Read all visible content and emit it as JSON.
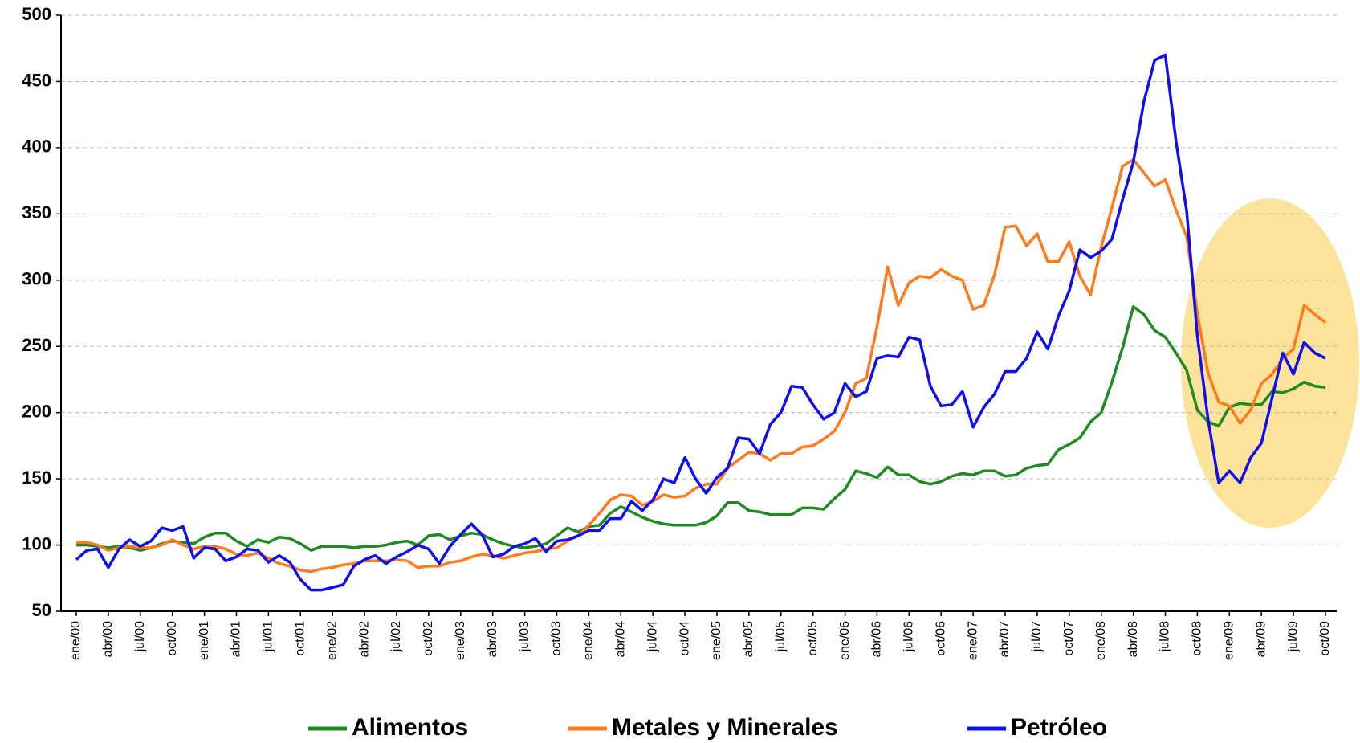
{
  "chart_data": {
    "type": "line",
    "categories": [
      "ene/00",
      null,
      null,
      "abr/00",
      null,
      null,
      "jul/00",
      null,
      null,
      "oct/00",
      null,
      null,
      "ene/01",
      null,
      null,
      "abr/01",
      null,
      null,
      "jul/01",
      null,
      null,
      "oct/01",
      null,
      null,
      "ene/02",
      null,
      null,
      "abr/02",
      null,
      null,
      "jul/02",
      null,
      null,
      "oct/02",
      null,
      null,
      "ene/03",
      null,
      null,
      "abr/03",
      null,
      null,
      "jul/03",
      null,
      null,
      "oct/03",
      null,
      null,
      "ene/04",
      null,
      null,
      "abr/04",
      null,
      null,
      "jul/04",
      null,
      null,
      "oct/04",
      null,
      null,
      "ene/05",
      null,
      null,
      "abr/05",
      null,
      null,
      "jul/05",
      null,
      null,
      "oct/05",
      null,
      null,
      "ene/06",
      null,
      null,
      "abr/06",
      null,
      null,
      "jul/06",
      null,
      null,
      "oct/06",
      null,
      null,
      "ene/07",
      null,
      null,
      "abr/07",
      null,
      null,
      "jul/07",
      null,
      null,
      "oct/07",
      null,
      null,
      "ene/08",
      null,
      null,
      "abr/08",
      null,
      null,
      "jul/08",
      null,
      null,
      "oct/08",
      null,
      null,
      "ene/09",
      null,
      null,
      "abr/09",
      null,
      null,
      "jul/09",
      null,
      null,
      "oct/09"
    ],
    "series": [
      {
        "name": "Alimentos",
        "color": "#1f8a1f",
        "values": [
          100,
          100,
          99,
          98,
          99,
          98,
          96,
          98,
          101,
          103,
          102,
          101,
          106,
          109,
          109,
          103,
          99,
          104,
          102,
          106,
          105,
          101,
          96,
          99,
          99,
          99,
          98,
          99,
          99,
          100,
          102,
          103,
          100,
          107,
          108,
          104,
          107,
          109,
          108,
          104,
          101,
          99,
          98,
          99,
          101,
          107,
          113,
          110,
          114,
          115,
          124,
          129,
          125,
          121,
          118,
          116,
          115,
          115,
          115,
          117,
          122,
          132,
          132,
          126,
          125,
          123,
          123,
          123,
          128,
          128,
          127,
          135,
          142,
          156,
          154,
          151,
          159,
          153,
          153,
          148,
          146,
          148,
          152,
          154,
          153,
          156,
          156,
          152,
          153,
          158,
          160,
          161,
          172,
          176,
          181,
          193,
          200,
          223,
          249,
          280,
          274,
          262,
          257,
          245,
          232,
          202,
          193,
          190,
          204,
          207,
          206,
          206,
          216,
          215,
          218,
          223,
          220,
          219
        ]
      },
      {
        "name": "Metales y Minerales",
        "color": "#ff7a1a",
        "values": [
          102,
          102,
          100,
          96,
          98,
          99,
          98,
          98,
          100,
          104,
          100,
          97,
          99,
          99,
          97,
          93,
          92,
          94,
          90,
          86,
          84,
          81,
          80,
          82,
          83,
          85,
          86,
          88,
          88,
          88,
          89,
          88,
          83,
          84,
          84,
          87,
          88,
          91,
          93,
          92,
          90,
          92,
          94,
          95,
          97,
          98,
          103,
          107,
          115,
          124,
          134,
          138,
          137,
          130,
          133,
          138,
          136,
          137,
          143,
          146,
          146,
          158,
          164,
          170,
          169,
          164,
          169,
          169,
          174,
          175,
          180,
          186,
          200,
          222,
          226,
          265,
          310,
          281,
          298,
          303,
          302,
          308,
          303,
          300,
          278,
          281,
          304,
          340,
          341,
          326,
          335,
          314,
          314,
          329,
          303,
          289,
          325,
          355,
          386,
          391,
          381,
          371,
          376,
          353,
          333,
          275,
          230,
          208,
          205,
          192,
          202,
          222,
          229,
          241,
          248,
          281,
          274,
          268
        ]
      },
      {
        "name": "Petróleo",
        "color": "#1010ee",
        "values": [
          89,
          96,
          97,
          83,
          97,
          104,
          99,
          103,
          113,
          111,
          114,
          90,
          98,
          97,
          88,
          91,
          97,
          96,
          87,
          92,
          87,
          74,
          66,
          66,
          68,
          70,
          84,
          89,
          92,
          86,
          91,
          95,
          100,
          97,
          86,
          99,
          108,
          116,
          108,
          91,
          93,
          99,
          101,
          105,
          95,
          103,
          104,
          107,
          111,
          111,
          120,
          120,
          133,
          126,
          134,
          150,
          147,
          166,
          150,
          139,
          151,
          158,
          181,
          180,
          169,
          191,
          200,
          220,
          219,
          206,
          195,
          200,
          222,
          212,
          216,
          241,
          243,
          242,
          257,
          255,
          220,
          205,
          206,
          216,
          189,
          204,
          214,
          231,
          231,
          241,
          261,
          248,
          273,
          292,
          323,
          317,
          322,
          331,
          361,
          389,
          435,
          466,
          470,
          405,
          352,
          258,
          195,
          147,
          156,
          147,
          166,
          177,
          211,
          245,
          229,
          253,
          245,
          241
        ]
      }
    ],
    "ylim": [
      50,
      500
    ],
    "yticks": [
      50,
      100,
      150,
      200,
      250,
      300,
      350,
      400,
      450,
      500
    ],
    "grid": true,
    "legend": "bottom"
  }
}
